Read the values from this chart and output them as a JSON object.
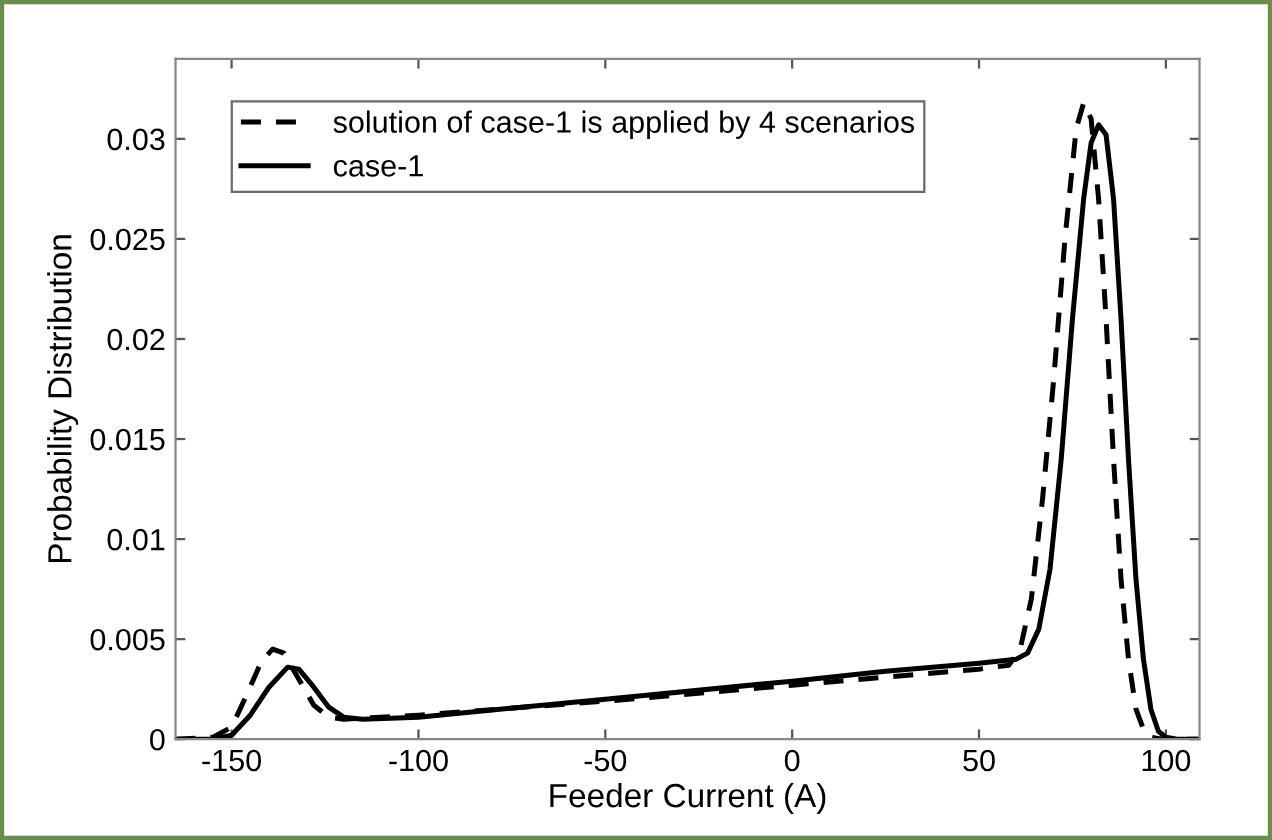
{
  "chart_data": {
    "type": "line",
    "xlabel": "Feeder Current (A)",
    "ylabel": "Probability Distribution",
    "xlim": [
      -165,
      109
    ],
    "ylim": [
      0,
      0.034
    ],
    "xticks": [
      -150,
      -100,
      -50,
      0,
      50,
      100
    ],
    "yticks": [
      0,
      0.005,
      0.01,
      0.015,
      0.02,
      0.025,
      0.03
    ],
    "grid": false,
    "legend": "top left",
    "series": [
      {
        "name": "solution of case-1 is applied by 4 scenarios",
        "color": "#000000",
        "line_style": "dashed",
        "x": [
          -165,
          -155,
          -150,
          -146,
          -142,
          -139,
          -136,
          -132,
          -128,
          -124,
          -120,
          -100,
          -50,
          0,
          25,
          50,
          58,
          61,
          64,
          67,
          70,
          73,
          76,
          78,
          80,
          82,
          84,
          86,
          88,
          90,
          92,
          94,
          96,
          99,
          109
        ],
        "values": [
          0,
          0.0001,
          0.0006,
          0.0022,
          0.0039,
          0.0045,
          0.0043,
          0.003,
          0.0017,
          0.0011,
          0.001,
          0.0012,
          0.0019,
          0.0027,
          0.0031,
          0.0035,
          0.0037,
          0.0045,
          0.007,
          0.012,
          0.018,
          0.025,
          0.0305,
          0.0318,
          0.031,
          0.027,
          0.021,
          0.014,
          0.008,
          0.004,
          0.0015,
          0.0005,
          0.0001,
          0,
          0
        ]
      },
      {
        "name": "case-1",
        "color": "#000000",
        "line_style": "solid",
        "x": [
          -165,
          -155,
          -150,
          -145,
          -140,
          -135,
          -132,
          -128,
          -124,
          -120,
          -115,
          -100,
          -50,
          0,
          25,
          50,
          60,
          63,
          66,
          69,
          72,
          75,
          78,
          80,
          82,
          84,
          86,
          88,
          90,
          92,
          94,
          96,
          98,
          100,
          103,
          109
        ],
        "values": [
          0,
          0,
          0.0002,
          0.0012,
          0.0026,
          0.0036,
          0.0035,
          0.0026,
          0.0016,
          0.0011,
          0.001,
          0.0011,
          0.002,
          0.0029,
          0.0034,
          0.0038,
          0.004,
          0.0043,
          0.0055,
          0.0085,
          0.014,
          0.021,
          0.027,
          0.0298,
          0.0307,
          0.0302,
          0.027,
          0.021,
          0.014,
          0.008,
          0.004,
          0.0015,
          0.0004,
          0.0001,
          0,
          0
        ]
      }
    ]
  }
}
